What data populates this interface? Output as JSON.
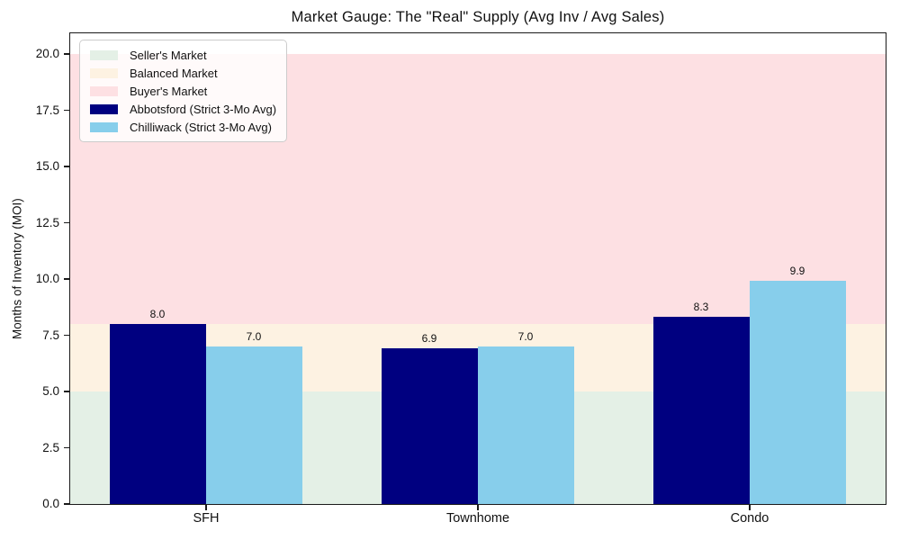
{
  "chart_data": {
    "type": "bar",
    "title": "Market Gauge: The \"Real\" Supply (Avg Inv / Avg Sales)",
    "xlabel": "",
    "ylabel": "Months of Inventory (MOI)",
    "categories": [
      "SFH",
      "Townhome",
      "Condo"
    ],
    "series": [
      {
        "name": "Abbotsford (Strict 3-Mo Avg)",
        "color": "#000080",
        "values": [
          8.0,
          6.9,
          8.3
        ]
      },
      {
        "name": "Chilliwack (Strict 3-Mo Avg)",
        "color": "#87CEEB",
        "values": [
          7.0,
          7.0,
          9.9
        ]
      }
    ],
    "bar_value_labels": [
      [
        "8.0",
        "6.9",
        "8.3"
      ],
      [
        "7.0",
        "7.0",
        "9.9"
      ]
    ],
    "bands": [
      {
        "name": "Seller's Market",
        "from": 0,
        "to": 5,
        "color": "#e4f0e6"
      },
      {
        "name": "Balanced Market",
        "from": 5,
        "to": 8,
        "color": "#fdf2e2"
      },
      {
        "name": "Buyer's Market",
        "from": 8,
        "to": 20,
        "color": "#fde0e3"
      }
    ],
    "yticks": [
      0.0,
      2.5,
      5.0,
      7.5,
      10.0,
      12.5,
      15.0,
      17.5,
      20.0
    ],
    "ylim": [
      0,
      20.92
    ],
    "grid": false,
    "legend_position": "upper left"
  }
}
